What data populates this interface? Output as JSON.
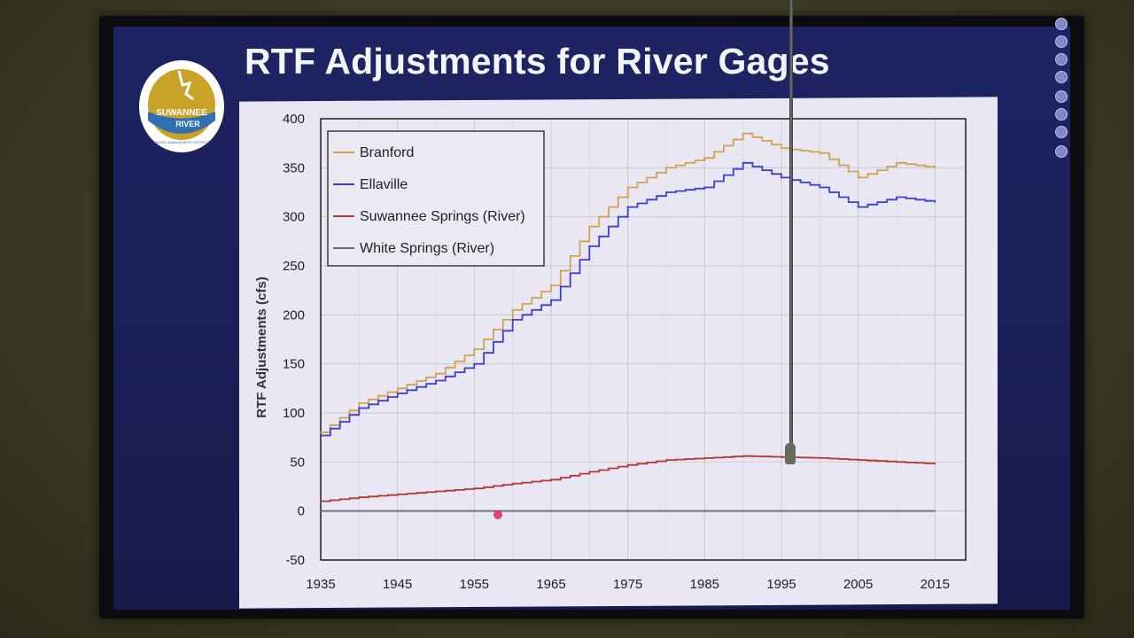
{
  "slide": {
    "title": "RTF Adjustments for River Gages"
  },
  "logo": {
    "name": "suwannee-river-wmd-logo",
    "text_top": "SUWANNEE",
    "text_mid": "RIVER",
    "text_ring": "WATER MANAGEMENT DISTRICT",
    "colors": {
      "gold": "#c9a227",
      "blue": "#2f6fb2",
      "white": "#ffffff"
    }
  },
  "toolbar": {
    "icons": [
      "close-icon",
      "record-icon",
      "cursor-icon",
      "chat-icon",
      "stop-icon",
      "attach-icon",
      "search-icon",
      "pen-icon"
    ],
    "colors": [
      "#d8353a",
      "#2bb34a",
      "#8f98d8",
      "#2bb34a",
      "#d9dcef",
      "#d9dcef",
      "#d9dcef",
      "#d9dcef"
    ]
  },
  "chart_data": {
    "type": "line",
    "title": "",
    "xlabel": "",
    "ylabel": "RTF Adjustments (cfs)",
    "xlim": [
      1935,
      2019
    ],
    "ylim": [
      -50,
      400
    ],
    "x_ticks": [
      "1935",
      "1945",
      "1955",
      "1965",
      "1975",
      "1985",
      "1995",
      "2005",
      "2015"
    ],
    "y_ticks": [
      "400",
      "350",
      "300",
      "250",
      "200",
      "150",
      "100",
      "50",
      "0",
      "-50"
    ],
    "grid": true,
    "legend_position": "top-left",
    "x": [
      1935,
      1940,
      1945,
      1950,
      1955,
      1960,
      1965,
      1970,
      1975,
      1980,
      1985,
      1990,
      1995,
      2000,
      2005,
      2010,
      2015
    ],
    "series": [
      {
        "name": "Branford",
        "color": "#d4a04c",
        "values": [
          80,
          110,
          125,
          140,
          165,
          205,
          230,
          290,
          330,
          350,
          360,
          385,
          370,
          365,
          340,
          355,
          350
        ]
      },
      {
        "name": "Ellaville",
        "color": "#3a3fd0",
        "values": [
          77,
          105,
          120,
          133,
          150,
          195,
          215,
          270,
          310,
          325,
          330,
          355,
          340,
          330,
          310,
          320,
          315
        ]
      },
      {
        "name": "Suwannee Springs (River)",
        "color": "#b3382f",
        "values": [
          10,
          14,
          17,
          20,
          23,
          28,
          32,
          40,
          47,
          52,
          54,
          56,
          55,
          54,
          52,
          50,
          48
        ]
      },
      {
        "name": "White Springs (River)",
        "color": "#6e6e78",
        "values": [
          0,
          0,
          0,
          0,
          0,
          0,
          0,
          0,
          0,
          0,
          0,
          0,
          0,
          0,
          0,
          0,
          0
        ]
      }
    ]
  }
}
